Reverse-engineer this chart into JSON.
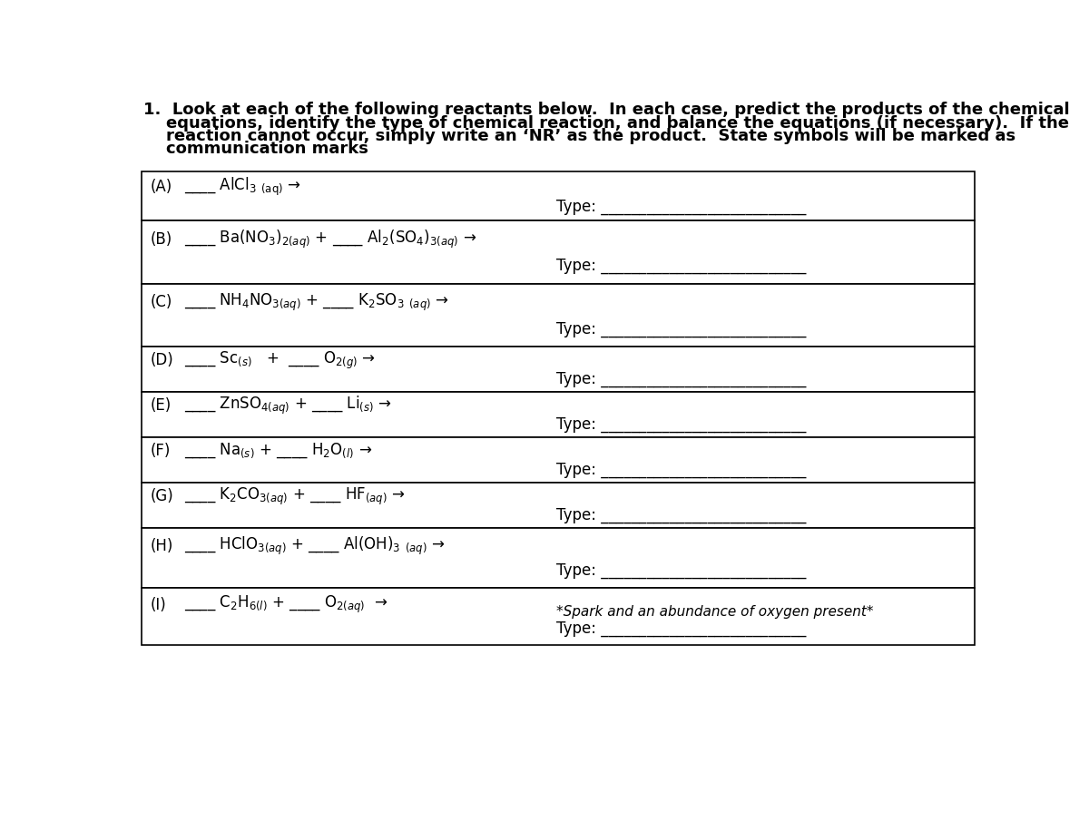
{
  "bg_color": "#ffffff",
  "border_color": "#000000",
  "text_color": "#000000",
  "title_line1": "1.  Look at each of the following reactants below.  In each case, predict the products of the chemical",
  "title_line2": "    equations, identify the type of chemical reaction, and balance the equations (if necessary).  If the",
  "title_line3": "    reaction cannot occur, simply write an ‘NR’ as the product.  State symbols will be marked as",
  "title_line4": "    communication marks",
  "rows": [
    {
      "label": "(A)",
      "reactant_parts": [
        {
          "text": "____ AlCl",
          "sub": false
        },
        {
          "text": "3",
          "sub": true
        },
        {
          "text": " (aq)",
          "sub": true,
          "smaller": true
        },
        {
          "text": " →",
          "sub": false
        }
      ],
      "reactant_str": "____ AlCl$_{3}$ $_{\\mathrm{(aq)}}$ →",
      "type_str": "Type: ___________________________",
      "note": ""
    },
    {
      "label": "(B)",
      "reactant_str": "____ Ba(NO$_{3}$)$_{2(aq)}$ + ____ Al$_{2}$(SO$_{4}$)$_{3(aq)}$ →",
      "type_str": "Type: ___________________________",
      "note": ""
    },
    {
      "label": "(C)",
      "reactant_str": "____ NH$_{4}$NO$_{3(aq)}$ + ____ K$_{2}$SO$_{3}$ $_{(aq)}$ →",
      "type_str": "Type: ___________________________",
      "note": ""
    },
    {
      "label": "(D)",
      "reactant_str": "____ Sc$_{(s)}$   +  ____ O$_{2(g)}$ →",
      "type_str": "Type: ___________________________",
      "note": ""
    },
    {
      "label": "(E)",
      "reactant_str": "____ ZnSO$_{4(aq)}$ + ____ Li$_{(s)}$ →",
      "type_str": "Type: ___________________________",
      "note": ""
    },
    {
      "label": "(F)",
      "reactant_str": "____ Na$_{(s)}$ + ____ H$_{2}$O$_{(l)}$ →",
      "type_str": "Type: ___________________________",
      "note": ""
    },
    {
      "label": "(G)",
      "reactant_str": "____ K$_{2}$CO$_{3(aq)}$ + ____ HF$_{(aq)}$ →",
      "type_str": "Type: ___________________________",
      "note": ""
    },
    {
      "label": "(H)",
      "reactant_str": "____ HClO$_{3(aq)}$ + ____ Al(OH)$_{3}$ $_{(aq)}$ →",
      "type_str": "Type: ___________________________",
      "note": ""
    },
    {
      "label": "(I)",
      "reactant_str": "____ C$_{2}$H$_{6(l)}$ + ____ O$_{2(aq)}$  →",
      "type_str": "Type: ___________________________",
      "note": "*Spark and an abundance of oxygen present*"
    }
  ],
  "title_fontsize": 13,
  "label_fontsize": 12,
  "reactant_fontsize": 12,
  "type_fontsize": 12,
  "note_fontsize": 11
}
